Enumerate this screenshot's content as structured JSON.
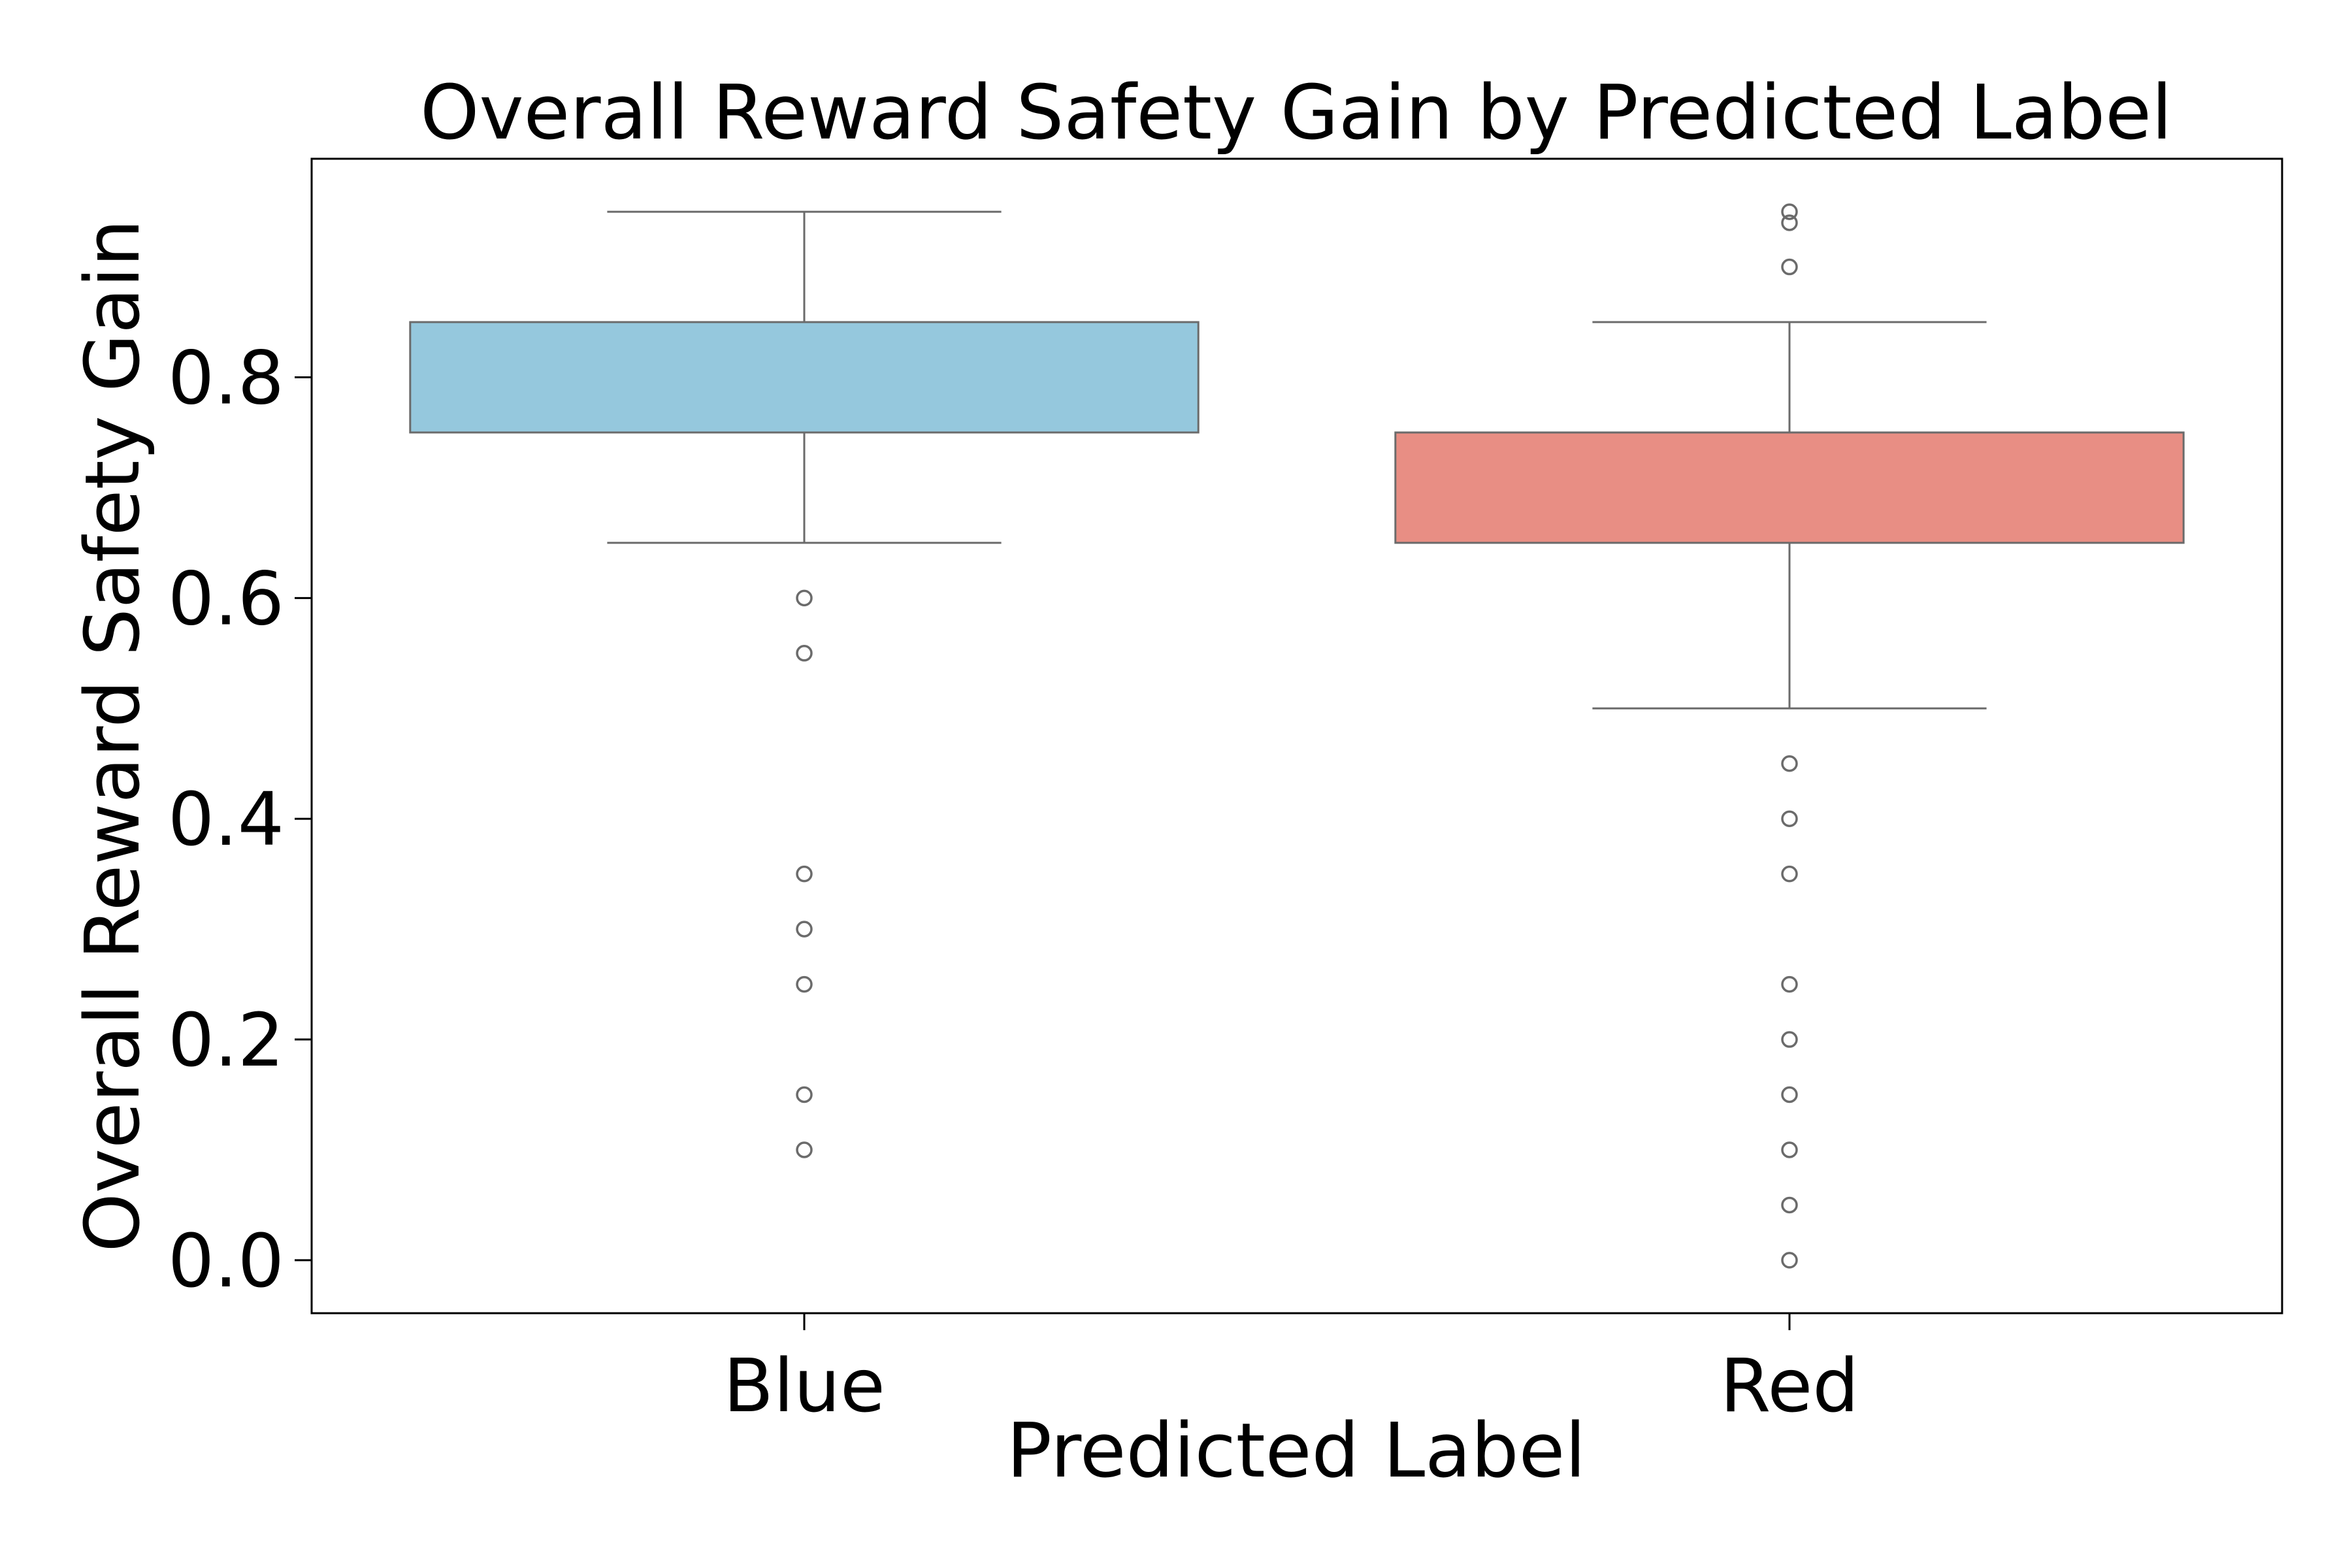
{
  "chart_data": {
    "type": "box",
    "title": "Overall Reward Safety Gain by Predicted Label",
    "xlabel": "Predicted Label",
    "ylabel": "Overall Reward Safety Gain",
    "categories": [
      "Blue",
      "Red"
    ],
    "ylim": [
      -0.048,
      0.998
    ],
    "yticks": [
      "0.0",
      "0.2",
      "0.4",
      "0.6",
      "0.8"
    ],
    "grid": false,
    "legend": "none",
    "boxes": [
      {
        "category": "Blue",
        "color": "#95c8dd",
        "whisker_low": 0.65,
        "q1": 0.75,
        "median": 0.85,
        "q3": 0.85,
        "whisker_high": 0.95,
        "outliers": [
          0.6,
          0.55,
          0.35,
          0.3,
          0.25,
          0.15,
          0.1
        ]
      },
      {
        "category": "Red",
        "color": "#e88e84",
        "whisker_low": 0.5,
        "q1": 0.65,
        "median": 0.75,
        "q3": 0.75,
        "whisker_high": 0.85,
        "outliers": [
          0.95,
          0.94,
          0.9,
          0.45,
          0.4,
          0.35,
          0.25,
          0.2,
          0.15,
          0.1,
          0.05,
          0.0
        ]
      }
    ]
  }
}
